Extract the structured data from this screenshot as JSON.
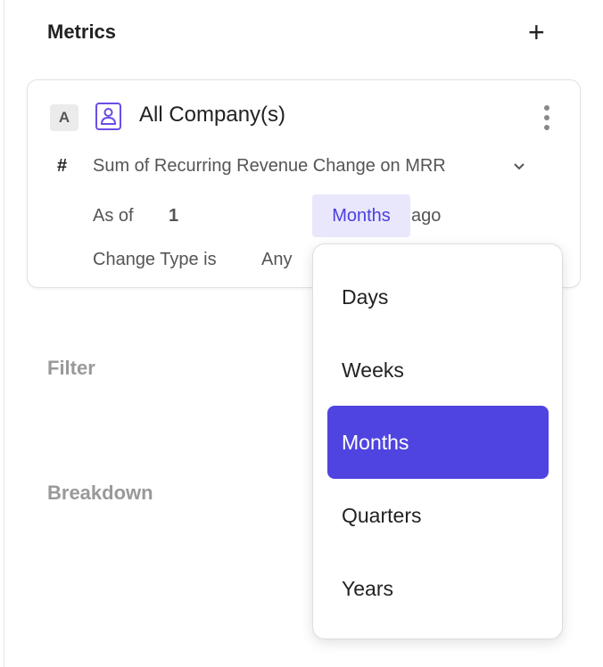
{
  "section_title": "Metrics",
  "metric": {
    "badge": "A",
    "entity": "All Company(s)",
    "hash": "#",
    "measure": "Sum of Recurring Revenue Change on MRR",
    "as_of_label": "As of",
    "as_of_value": "1",
    "unit_selected": "Months",
    "ago_label": "ago",
    "change_type_label": "Change Type is",
    "change_type_value": "Any"
  },
  "filter_label": "Filter",
  "breakdown_label": "Breakdown",
  "dropdown": {
    "options": [
      "Days",
      "Weeks",
      "Months",
      "Quarters",
      "Years"
    ],
    "selected": "Months"
  },
  "colors": {
    "accent": "#4f44e0",
    "selected_bg": "#e9e7fb"
  }
}
